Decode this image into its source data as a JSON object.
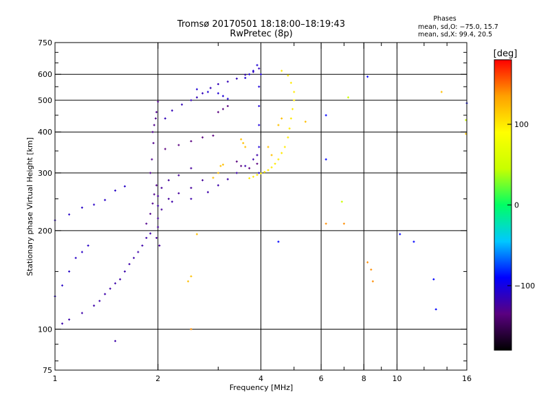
{
  "chart_data": {
    "type": "scatter",
    "title": "Tromsø 20170501 18:18:00–18:19:43",
    "subtitle": "RwPretec (8p)",
    "stats": {
      "heading": "Phases",
      "line1": "mean, sd,O: −75.0, 15.7",
      "line2": "mean, sd,X:  99.4, 20.5"
    },
    "xlabel": "Frequency [MHz]",
    "ylabel": "Stationary phase Virtual Height [km]",
    "x_scale": "log",
    "y_scale": "log",
    "xlim": [
      1,
      16
    ],
    "ylim": [
      75,
      750
    ],
    "x_ticks": [
      1,
      2,
      4,
      6,
      8,
      10,
      16
    ],
    "x_tick_labels": [
      "1",
      "2",
      "4",
      "6",
      "8",
      "10",
      "16"
    ],
    "y_ticks": [
      75,
      100,
      200,
      300,
      400,
      500,
      600,
      750
    ],
    "y_tick_labels": [
      "75",
      "100",
      "200",
      "300",
      "400",
      "500",
      "600",
      "750"
    ],
    "x_gridlines": [
      2,
      4,
      6,
      8,
      10
    ],
    "y_gridlines": [
      100,
      200,
      300,
      400,
      500,
      600
    ],
    "grid": true,
    "colorbar": {
      "label": "[deg]",
      "min": -180,
      "max": 180,
      "ticks": [
        100,
        0,
        -100
      ],
      "tick_labels": [
        "100",
        "0",
        "−100"
      ],
      "stops": [
        "#000000",
        "#5a0080",
        "#0000ff",
        "#00c8ff",
        "#00ff64",
        "#c8ff00",
        "#ffff00",
        "#ffa000",
        "#ff0000"
      ]
    },
    "series": [
      {
        "phase": -120,
        "points": [
          [
            1.5,
            92
          ],
          [
            1.05,
            104
          ],
          [
            1.1,
            107
          ],
          [
            1.2,
            112
          ],
          [
            1.3,
            118
          ],
          [
            1.35,
            122
          ],
          [
            1.4,
            128
          ],
          [
            1.45,
            133
          ],
          [
            1.5,
            138
          ],
          [
            1.55,
            142
          ],
          [
            1.6,
            150
          ],
          [
            1.65,
            158
          ],
          [
            1.7,
            165
          ],
          [
            1.75,
            172
          ],
          [
            1.8,
            180
          ],
          [
            1.85,
            190
          ],
          [
            1.9,
            196
          ]
        ]
      },
      {
        "phase": -110,
        "points": [
          [
            1.0,
            126
          ],
          [
            1.05,
            136
          ],
          [
            1.1,
            150
          ],
          [
            1.15,
            165
          ],
          [
            1.2,
            172
          ],
          [
            1.25,
            180
          ],
          [
            1.0,
            215
          ],
          [
            1.1,
            224
          ],
          [
            1.2,
            235
          ],
          [
            1.3,
            240
          ],
          [
            1.4,
            248
          ],
          [
            1.5,
            265
          ],
          [
            1.6,
            273
          ]
        ]
      },
      {
        "phase": -130,
        "points": [
          [
            1.85,
            210
          ],
          [
            1.9,
            225
          ],
          [
            1.93,
            242
          ],
          [
            1.95,
            258
          ],
          [
            1.98,
            275
          ],
          [
            1.9,
            300
          ],
          [
            1.92,
            330
          ],
          [
            1.94,
            370
          ],
          [
            1.93,
            400
          ],
          [
            1.95,
            420
          ],
          [
            1.97,
            440
          ],
          [
            1.98,
            460
          ],
          [
            2.0,
            495
          ]
        ]
      },
      {
        "phase": -125,
        "points": [
          [
            2.0,
            255
          ],
          [
            2.05,
            270
          ],
          [
            2.15,
            285
          ],
          [
            2.3,
            295
          ],
          [
            2.5,
            310
          ],
          [
            2.7,
            285
          ],
          [
            2.5,
            270
          ],
          [
            2.3,
            260
          ],
          [
            2.15,
            250
          ],
          [
            2.05,
            232
          ],
          [
            2.0,
            218
          ],
          [
            2.0,
            205
          ],
          [
            1.98,
            190
          ],
          [
            2.02,
            180
          ]
        ]
      },
      {
        "phase": -120,
        "points": [
          [
            2.0,
            238
          ],
          [
            2.2,
            245
          ],
          [
            2.5,
            250
          ],
          [
            2.8,
            262
          ],
          [
            3.0,
            275
          ],
          [
            3.2,
            287
          ],
          [
            3.4,
            300
          ],
          [
            3.6,
            315
          ],
          [
            3.8,
            330
          ],
          [
            3.9,
            340
          ]
        ]
      },
      {
        "phase": -115,
        "points": [
          [
            2.1,
            440
          ],
          [
            2.2,
            465
          ],
          [
            2.35,
            485
          ],
          [
            2.5,
            500
          ],
          [
            2.6,
            510
          ],
          [
            2.7,
            525
          ],
          [
            2.85,
            545
          ],
          [
            3.0,
            560
          ],
          [
            3.2,
            570
          ],
          [
            3.4,
            582
          ],
          [
            3.6,
            598
          ],
          [
            3.8,
            610
          ],
          [
            3.95,
            625
          ]
        ]
      },
      {
        "phase": -135,
        "points": [
          [
            2.1,
            355
          ],
          [
            2.3,
            365
          ],
          [
            2.5,
            375
          ],
          [
            2.7,
            385
          ],
          [
            2.9,
            390
          ],
          [
            3.0,
            460
          ],
          [
            3.1,
            470
          ],
          [
            3.2,
            480
          ],
          [
            3.4,
            325
          ],
          [
            3.5,
            315
          ],
          [
            3.7,
            310
          ],
          [
            3.9,
            320
          ]
        ]
      },
      {
        "phase": -105,
        "points": [
          [
            2.6,
            540
          ],
          [
            2.8,
            530
          ],
          [
            3.0,
            525
          ],
          [
            3.1,
            515
          ],
          [
            3.2,
            505
          ],
          [
            3.6,
            585
          ],
          [
            3.7,
            600
          ],
          [
            3.8,
            615
          ],
          [
            3.9,
            640
          ],
          [
            4.0,
            600
          ],
          [
            3.95,
            550
          ],
          [
            3.95,
            480
          ],
          [
            3.95,
            420
          ],
          [
            3.95,
            360
          ],
          [
            3.95,
            300
          ]
        ]
      },
      {
        "phase": 100,
        "points": [
          [
            3.7,
            289
          ],
          [
            3.8,
            292
          ],
          [
            3.9,
            296
          ],
          [
            4.0,
            299
          ],
          [
            4.1,
            302
          ],
          [
            4.2,
            306
          ],
          [
            4.3,
            312
          ],
          [
            4.4,
            320
          ],
          [
            4.5,
            330
          ],
          [
            4.6,
            345
          ],
          [
            4.7,
            360
          ],
          [
            4.8,
            385
          ],
          [
            4.85,
            410
          ],
          [
            4.9,
            440
          ],
          [
            4.95,
            470
          ],
          [
            5.0,
            500
          ],
          [
            5.0,
            530
          ],
          [
            4.9,
            565
          ],
          [
            4.8,
            595
          ],
          [
            4.6,
            615
          ]
        ]
      },
      {
        "phase": 120,
        "points": [
          [
            2.9,
            290
          ],
          [
            3.0,
            300
          ],
          [
            3.05,
            315
          ],
          [
            3.1,
            318
          ],
          [
            3.5,
            380
          ],
          [
            3.55,
            370
          ],
          [
            3.6,
            360
          ],
          [
            4.2,
            360
          ],
          [
            4.3,
            340
          ],
          [
            4.5,
            420
          ],
          [
            4.6,
            440
          ],
          [
            2.6,
            195
          ],
          [
            2.5,
            145
          ],
          [
            2.45,
            140
          ],
          [
            5.4,
            430
          ],
          [
            13.5,
            530
          ],
          [
            15.9,
            395
          ]
        ]
      },
      {
        "phase": 50,
        "points": [
          [
            15.9,
            435
          ],
          [
            6.9,
            245
          ],
          [
            7.2,
            510
          ]
        ]
      },
      {
        "phase": -90,
        "points": [
          [
            6.2,
            450
          ],
          [
            8.2,
            590
          ],
          [
            13.0,
            115
          ],
          [
            16.0,
            490
          ],
          [
            10.2,
            195
          ],
          [
            12.8,
            142
          ],
          [
            4.5,
            185
          ],
          [
            11.2,
            185
          ],
          [
            6.2,
            330
          ]
        ]
      },
      {
        "phase": 140,
        "points": [
          [
            8.2,
            160
          ],
          [
            8.4,
            152
          ],
          [
            8.5,
            140
          ],
          [
            6.2,
            210
          ],
          [
            7.0,
            210
          ],
          [
            2.5,
            100
          ]
        ]
      }
    ]
  }
}
